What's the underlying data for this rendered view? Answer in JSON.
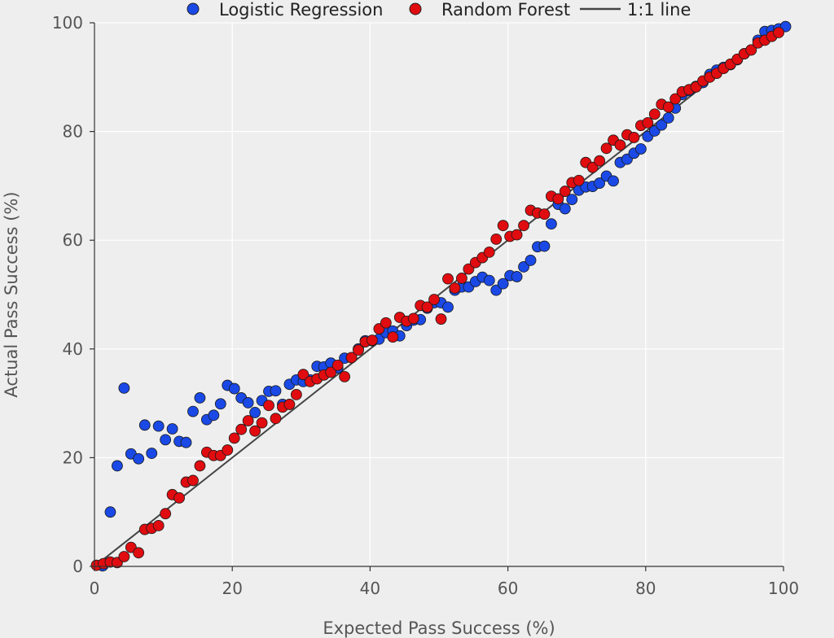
{
  "chart_data": {
    "type": "scatter",
    "title": "",
    "xlabel": "Expected Pass Success (%)",
    "ylabel": "Actual Pass Success (%)",
    "xlim": [
      0,
      100
    ],
    "ylim": [
      0,
      100
    ],
    "xticks": [
      0,
      20,
      40,
      60,
      80,
      100
    ],
    "yticks": [
      0,
      20,
      40,
      60,
      80,
      100
    ],
    "grid": true,
    "legend": {
      "placement": "top",
      "entries": [
        {
          "label": "Logistic Regression",
          "marker": "circle",
          "color": "#1a49e6"
        },
        {
          "label": "Random Forest",
          "marker": "circle",
          "color": "#e00c10"
        },
        {
          "label": "1:1 line",
          "marker": "line",
          "color": "#444444"
        }
      ]
    },
    "reference_line": {
      "name": "1:1 line",
      "points": [
        [
          0,
          0
        ],
        [
          100,
          100
        ]
      ],
      "color": "#444444"
    },
    "series": [
      {
        "name": "Logistic Regression",
        "color": "#1a49e6",
        "points": [
          [
            1.2,
            0.1
          ],
          [
            2.3,
            10
          ],
          [
            3.3,
            18.5
          ],
          [
            4.3,
            32.8
          ],
          [
            5.3,
            20.7
          ],
          [
            6.4,
            19.8
          ],
          [
            7.3,
            26
          ],
          [
            8.3,
            20.8
          ],
          [
            9.3,
            25.8
          ],
          [
            10.3,
            23.3
          ],
          [
            11.3,
            25.3
          ],
          [
            12.3,
            23
          ],
          [
            13.3,
            22.8
          ],
          [
            14.3,
            28.5
          ],
          [
            15.3,
            31
          ],
          [
            16.3,
            27
          ],
          [
            17.3,
            27.8
          ],
          [
            18.3,
            29.9
          ],
          [
            19.3,
            33.3
          ],
          [
            20.3,
            32.7
          ],
          [
            21.3,
            31
          ],
          [
            22.3,
            30.1
          ],
          [
            23.3,
            28.3
          ],
          [
            24.3,
            30.5
          ],
          [
            25.3,
            32.2
          ],
          [
            26.3,
            32.3
          ],
          [
            27.3,
            29.8
          ],
          [
            28.3,
            33.5
          ],
          [
            29.3,
            34.3
          ],
          [
            30.3,
            34
          ],
          [
            31.3,
            34.3
          ],
          [
            32.3,
            36.8
          ],
          [
            33.3,
            36.7
          ],
          [
            34.3,
            37.4
          ],
          [
            35.3,
            36.5
          ],
          [
            36.3,
            38.3
          ],
          [
            37.3,
            38.4
          ],
          [
            38.3,
            40
          ],
          [
            39.3,
            41.5
          ],
          [
            40.3,
            41.5
          ],
          [
            41.3,
            41.8
          ],
          [
            42.3,
            43
          ],
          [
            43.3,
            43.3
          ],
          [
            44.3,
            42.4
          ],
          [
            45.3,
            44.3
          ],
          [
            46.3,
            45.3
          ],
          [
            47.3,
            45.4
          ],
          [
            48.3,
            47.5
          ],
          [
            49.3,
            48.5
          ],
          [
            50.3,
            48.5
          ],
          [
            51.3,
            47.7
          ],
          [
            52.3,
            50.8
          ],
          [
            53.3,
            51.4
          ],
          [
            54.3,
            51.4
          ],
          [
            55.3,
            52.4
          ],
          [
            56.3,
            53.2
          ],
          [
            57.3,
            52.6
          ],
          [
            58.3,
            50.8
          ],
          [
            59.3,
            52
          ],
          [
            60.3,
            53.5
          ],
          [
            61.3,
            53.3
          ],
          [
            62.3,
            55.1
          ],
          [
            63.3,
            56.3
          ],
          [
            64.3,
            58.8
          ],
          [
            65.3,
            58.9
          ],
          [
            66.3,
            63
          ],
          [
            67.3,
            66.6
          ],
          [
            68.3,
            65.8
          ],
          [
            69.3,
            67.5
          ],
          [
            70.3,
            69.2
          ],
          [
            71.3,
            69.8
          ],
          [
            72.3,
            69.9
          ],
          [
            73.3,
            70.5
          ],
          [
            74.3,
            71.8
          ],
          [
            75.3,
            70.9
          ],
          [
            76.3,
            74.3
          ],
          [
            77.3,
            74.9
          ],
          [
            78.3,
            76
          ],
          [
            79.3,
            76.8
          ],
          [
            80.3,
            79.1
          ],
          [
            81.3,
            80.1
          ],
          [
            82.3,
            81.2
          ],
          [
            83.3,
            82.5
          ],
          [
            84.3,
            84.3
          ],
          [
            85.3,
            86.8
          ],
          [
            86.3,
            87.5
          ],
          [
            87.3,
            88.3
          ],
          [
            88.3,
            89
          ],
          [
            89.3,
            90.5
          ],
          [
            90.3,
            91.3
          ],
          [
            91.3,
            91.8
          ],
          [
            92.3,
            92.3
          ],
          [
            93.3,
            93.2
          ],
          [
            94.3,
            94.3
          ],
          [
            95.3,
            95
          ],
          [
            96.3,
            96.8
          ],
          [
            97.3,
            98.4
          ],
          [
            98.3,
            98.6
          ],
          [
            99.3,
            98.9
          ],
          [
            100.3,
            99.3
          ]
        ]
      },
      {
        "name": "Random Forest",
        "color": "#e00c10",
        "points": [
          [
            0.3,
            0.2
          ],
          [
            1.3,
            0.5
          ],
          [
            2.3,
            0.8
          ],
          [
            3.3,
            0.7
          ],
          [
            4.3,
            1.8
          ],
          [
            5.3,
            3.5
          ],
          [
            6.4,
            2.5
          ],
          [
            7.3,
            6.8
          ],
          [
            8.3,
            7
          ],
          [
            9.3,
            7.5
          ],
          [
            10.3,
            9.7
          ],
          [
            11.3,
            13.2
          ],
          [
            12.3,
            12.6
          ],
          [
            13.3,
            15.5
          ],
          [
            14.3,
            15.8
          ],
          [
            15.3,
            18.5
          ],
          [
            16.3,
            21
          ],
          [
            17.3,
            20.4
          ],
          [
            18.3,
            20.4
          ],
          [
            19.3,
            21.4
          ],
          [
            20.3,
            23.6
          ],
          [
            21.3,
            25.2
          ],
          [
            22.3,
            26.8
          ],
          [
            23.3,
            24.9
          ],
          [
            24.3,
            26.4
          ],
          [
            25.3,
            29.6
          ],
          [
            26.3,
            27.2
          ],
          [
            27.3,
            29.3
          ],
          [
            28.3,
            29.8
          ],
          [
            29.3,
            31.6
          ],
          [
            30.3,
            35.3
          ],
          [
            31.3,
            34
          ],
          [
            32.3,
            34.5
          ],
          [
            33.3,
            35.2
          ],
          [
            34.3,
            35.7
          ],
          [
            35.3,
            37
          ],
          [
            36.3,
            34.9
          ],
          [
            37.3,
            38.4
          ],
          [
            38.3,
            39.8
          ],
          [
            39.3,
            41.3
          ],
          [
            40.3,
            41.6
          ],
          [
            41.3,
            43.7
          ],
          [
            42.3,
            44.8
          ],
          [
            43.3,
            42.2
          ],
          [
            44.3,
            45.8
          ],
          [
            45.3,
            45.1
          ],
          [
            46.3,
            45.6
          ],
          [
            47.3,
            48
          ],
          [
            48.3,
            47.7
          ],
          [
            49.3,
            49.1
          ],
          [
            50.3,
            45.5
          ],
          [
            51.3,
            52.9
          ],
          [
            52.3,
            51.2
          ],
          [
            53.3,
            53
          ],
          [
            54.3,
            54.7
          ],
          [
            55.3,
            55.9
          ],
          [
            56.3,
            56.8
          ],
          [
            57.3,
            57.8
          ],
          [
            58.3,
            60.2
          ],
          [
            59.3,
            62.7
          ],
          [
            60.3,
            60.7
          ],
          [
            61.3,
            61
          ],
          [
            62.3,
            62.7
          ],
          [
            63.3,
            65.5
          ],
          [
            64.3,
            65
          ],
          [
            65.3,
            64.8
          ],
          [
            66.3,
            68.1
          ],
          [
            67.3,
            67.6
          ],
          [
            68.3,
            69
          ],
          [
            69.3,
            70.6
          ],
          [
            70.3,
            71
          ],
          [
            71.3,
            74.3
          ],
          [
            72.3,
            73.4
          ],
          [
            73.3,
            74.6
          ],
          [
            74.3,
            76.9
          ],
          [
            75.3,
            78.4
          ],
          [
            76.3,
            77.5
          ],
          [
            77.3,
            79.4
          ],
          [
            78.3,
            78.9
          ],
          [
            79.3,
            81.1
          ],
          [
            80.3,
            81.6
          ],
          [
            81.3,
            83.2
          ],
          [
            82.3,
            85
          ],
          [
            83.3,
            84.5
          ],
          [
            84.3,
            86
          ],
          [
            85.3,
            87.3
          ],
          [
            86.3,
            87.7
          ],
          [
            87.3,
            88.2
          ],
          [
            88.3,
            89.3
          ],
          [
            89.3,
            90
          ],
          [
            90.3,
            90.7
          ],
          [
            91.3,
            91.6
          ],
          [
            92.3,
            92.4
          ],
          [
            93.3,
            93.3
          ],
          [
            94.3,
            94.3
          ],
          [
            95.3,
            95
          ],
          [
            96.3,
            96.3
          ],
          [
            97.3,
            96.8
          ],
          [
            98.3,
            97.5
          ],
          [
            99.3,
            98.2
          ]
        ]
      }
    ]
  }
}
